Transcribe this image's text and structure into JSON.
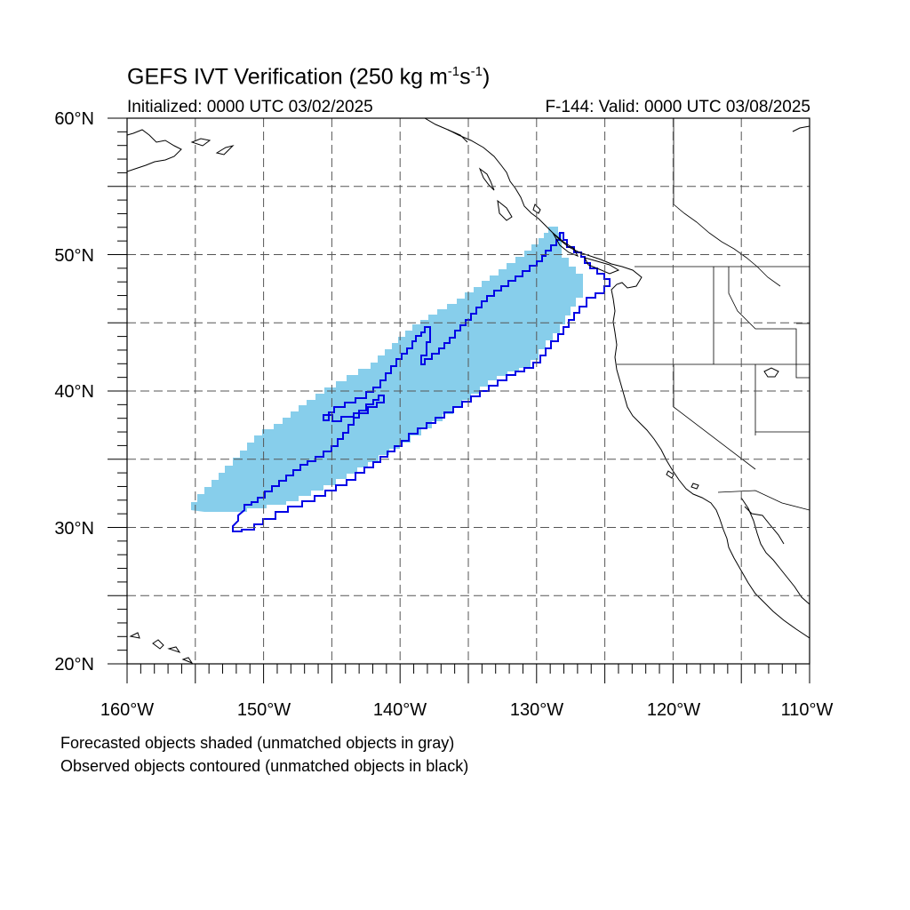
{
  "title": {
    "text": "GEFS IVT Verification (250 kg m",
    "sup1": "-1",
    "mid": "s",
    "sup2": "-1",
    "end": ")"
  },
  "subtitle": {
    "initialized": "Initialized: 0000 UTC 03/02/2025",
    "valid": "F-144: Valid: 0000 UTC 03/08/2025"
  },
  "map": {
    "projection": "cylindrical-equidistant",
    "lon_range": [
      -160,
      -110
    ],
    "lat_range": [
      20,
      60
    ],
    "grid": "dashed every 5 degrees",
    "lon_ticks": [
      "160°W",
      "150°W",
      "140°W",
      "130°W",
      "120°W",
      "110°W"
    ],
    "lat_ticks": [
      "20°N",
      "30°N",
      "40°N",
      "50°N",
      "60°N"
    ],
    "forecast_object": {
      "color": "#87ceeb",
      "style": "shaded"
    },
    "observed_object": {
      "color": "#0000ff",
      "style": "contoured"
    }
  },
  "captions": {
    "forecast": "Forecasted objects shaded (unmatched objects in gray)",
    "observed": "Observed objects contoured (unmatched objects in black)"
  }
}
